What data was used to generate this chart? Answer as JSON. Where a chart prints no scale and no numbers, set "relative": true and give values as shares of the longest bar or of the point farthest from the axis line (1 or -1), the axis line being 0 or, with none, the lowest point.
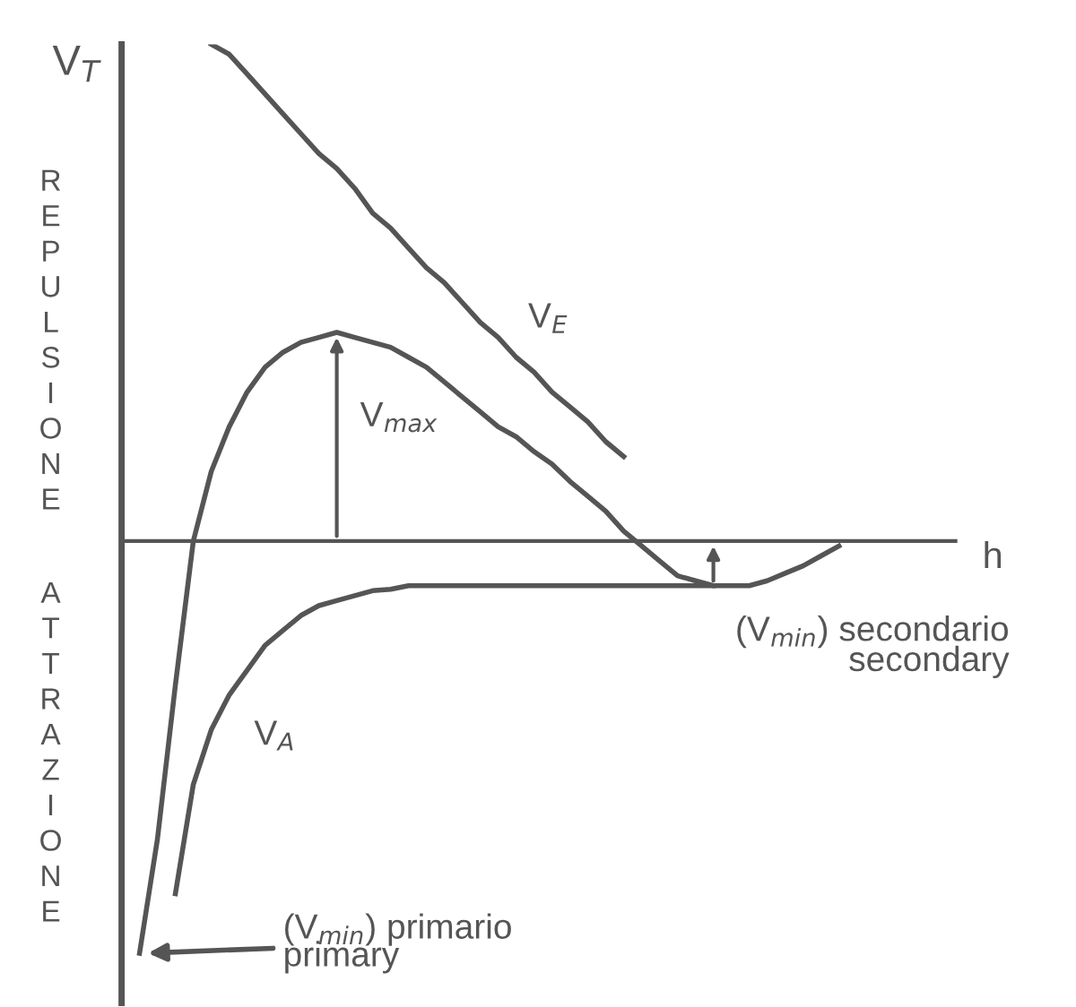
{
  "chart_data": {
    "type": "line",
    "relative": true,
    "ylabel": "V$_{T}$",
    "xlabel": "h",
    "legend": false,
    "line_style": "solid",
    "marker": "none",
    "categories": [
      null,
      null,
      null,
      null,
      null,
      null,
      null,
      null,
      null,
      null,
      null,
      null,
      null,
      null,
      null,
      null,
      null,
      null,
      null,
      null,
      null,
      null,
      null,
      null,
      null,
      null,
      null,
      null,
      null,
      null,
      null,
      null,
      null,
      null,
      null,
      null,
      null,
      null,
      null,
      null,
      null,
      null,
      null,
      null,
      null,
      null,
      null
    ],
    "series": [
      {
        "color": "#555555",
        "values": [
          null,
          -0.83,
          -0.6,
          -0.29,
          0,
          0.14,
          0.23,
          0.3,
          0.35,
          0.38,
          0.4,
          0.41,
          0.42,
          0.41,
          0.4,
          0.39,
          0.37,
          0.35,
          0.32,
          0.29,
          0.26,
          0.23,
          0.21,
          0.18,
          0.155,
          0.12,
          0.09,
          0.06,
          0.02,
          -0.01,
          -0.04,
          -0.07,
          -0.08,
          -0.09,
          -0.09,
          -0.09,
          -0.08,
          -0.065,
          -0.05,
          -0.03,
          -0.01,
          null,
          null,
          null,
          null,
          null,
          null
        ]
      },
      {
        "name": "V$_{E}$",
        "color": "#555555",
        "values": [
          null,
          null,
          null,
          null,
          null,
          1.0,
          0.98,
          0.94,
          0.9,
          0.86,
          0.82,
          0.78,
          0.75,
          0.71,
          0.66,
          0.63,
          0.59,
          0.55,
          0.52,
          0.48,
          0.44,
          0.41,
          0.37,
          0.34,
          0.3,
          0.27,
          0.24,
          0.2,
          0.17,
          null,
          null,
          null,
          null,
          null,
          null,
          null,
          null,
          null,
          null,
          null,
          null,
          null,
          null,
          null,
          null,
          null,
          null
        ]
      },
      {
        "name": "V$_{A}$",
        "color": "#555555",
        "values": [
          null,
          null,
          null,
          -0.71,
          -0.49,
          -0.38,
          -0.31,
          -0.26,
          -0.21,
          -0.18,
          -0.15,
          -0.13,
          -0.12,
          -0.11,
          -0.1,
          -0.097,
          -0.09,
          -0.09,
          -0.09,
          -0.09,
          -0.09,
          -0.09,
          -0.09,
          -0.09,
          -0.09,
          -0.09,
          -0.09,
          -0.09,
          -0.09,
          -0.09,
          -0.09,
          -0.09,
          -0.09,
          -0.09,
          null,
          null,
          null,
          null,
          null,
          null,
          null,
          null,
          null,
          null,
          null,
          null,
          null
        ]
      }
    ],
    "annotations": [
      "REPULSIONE",
      "ATTRAZIONE",
      "V$_{max}$",
      "(V$_{min}$) secondario\nsecondary",
      "(V$_{min}$) primario\nprimary"
    ]
  }
}
